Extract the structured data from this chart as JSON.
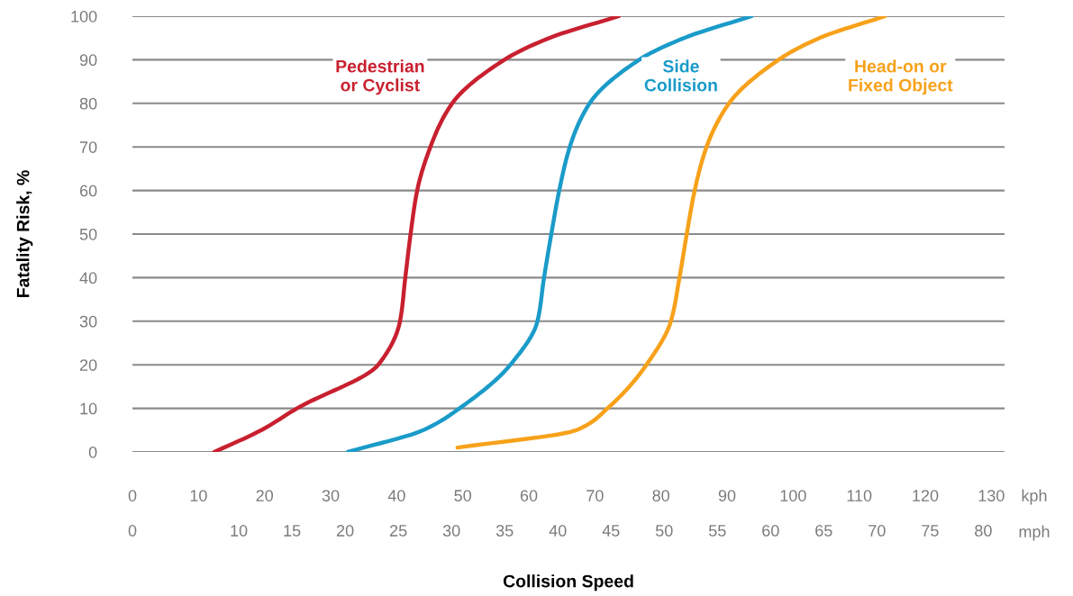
{
  "chart_data": {
    "type": "line",
    "xlabel": "Collision Speed",
    "ylabel": "Fatality Risk, %",
    "xlim": [
      0,
      132
    ],
    "xticks": [
      0,
      10,
      20,
      30,
      40,
      50,
      60,
      70,
      80,
      90,
      100,
      110,
      120,
      130
    ],
    "x2lim": [
      0,
      82
    ],
    "x2ticks": [
      0,
      10,
      15,
      20,
      25,
      30,
      35,
      40,
      45,
      50,
      55,
      60,
      65,
      70,
      75,
      80
    ],
    "ylim": [
      0,
      100
    ],
    "yticks": [
      0,
      10,
      20,
      30,
      40,
      50,
      60,
      70,
      80,
      90,
      100
    ],
    "grid": "y",
    "legend": false,
    "marker": "none",
    "line_style": "solid",
    "annotations": [
      "kph",
      "mph"
    ],
    "series": [
      {
        "name": "Pedestrian\nor Cyclist",
        "color": "#c8202f",
        "x": [
          12.4,
          19.5,
          24.9,
          37.2,
          40.5,
          41.3,
          42.1,
          43.1,
          45.1,
          48.4,
          56.3,
          63.1,
          73.6
        ],
        "values": [
          0,
          5,
          10,
          20,
          30,
          40,
          50,
          60,
          70,
          80,
          90,
          95,
          100
        ]
      },
      {
        "name": "Side\nCollision",
        "color": "#1a9bc9",
        "x": [
          32.6,
          44,
          49.5,
          57.2,
          61.3,
          62.3,
          63.4,
          64.6,
          66.2,
          69.2,
          76.7,
          83.5,
          93.7
        ],
        "values": [
          0,
          5,
          10,
          20,
          30,
          40,
          50,
          60,
          70,
          80,
          90,
          95,
          100
        ]
      },
      {
        "name": "Head-on or\nFixed Object",
        "color": "#f7a11a",
        "x": [
          49.2,
          67.2,
          71.9,
          77.8,
          81.5,
          82.8,
          83.9,
          85.1,
          86.9,
          90.3,
          97.8,
          104,
          113.9
        ],
        "values": [
          1,
          5,
          10,
          20,
          30,
          40,
          50,
          60,
          70,
          80,
          90,
          95,
          100
        ]
      }
    ]
  }
}
